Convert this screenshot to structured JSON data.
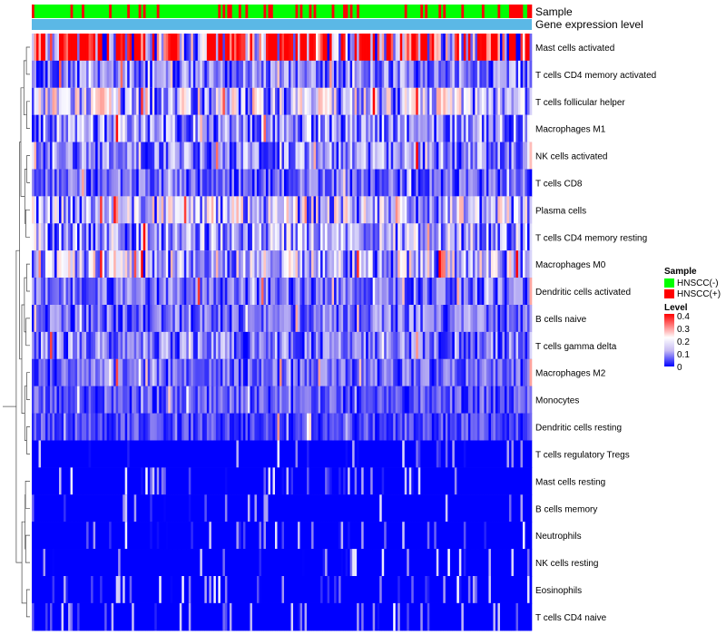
{
  "chart_data": {
    "type": "heatmap",
    "annotation_tracks": [
      "Sample",
      "Gene expression level"
    ],
    "rows": [
      "Mast cells activated",
      "T cells CD4 memory activated",
      "T cells follicular helper",
      "Macrophages M1",
      "NK cells activated",
      "T cells CD8",
      "Plasma cells",
      "T cells CD4 memory resting",
      "Macrophages M0",
      "Dendritic cells activated",
      "B cells naive",
      "T cells gamma delta",
      "Macrophages M2",
      "Monocytes",
      "Dendritic cells resting",
      "T cells regulatory  Tregs",
      "Mast cells resting",
      "B cells memory",
      "Neutrophils",
      "NK cells resting",
      "Eosinophils",
      "T cells CD4 naive"
    ],
    "row_mean_levels": [
      0.32,
      0.09,
      0.15,
      0.11,
      0.1,
      0.07,
      0.14,
      0.12,
      0.14,
      0.08,
      0.08,
      0.09,
      0.07,
      0.06,
      0.05,
      0.02,
      0.02,
      0.02,
      0.01,
      0.01,
      0.01,
      0.01
    ],
    "n_samples": 220,
    "color_scale": {
      "min": 0,
      "max": 0.4,
      "stops": [
        [
          0,
          "#0000ff"
        ],
        [
          0.1,
          "#9b8ff0"
        ],
        [
          0.2,
          "#ffffff"
        ],
        [
          0.3,
          "#ff8a80"
        ],
        [
          0.4,
          "#ff0000"
        ]
      ]
    },
    "sample_legend_title": "Sample",
    "sample_groups": [
      {
        "label": "HNSCC(-)",
        "color": "#00ff00",
        "fraction": 0.8
      },
      {
        "label": "HNSCC(+)",
        "color": "#ff0000",
        "fraction": 0.2
      }
    ],
    "expression_track_color": "#5bb8e6",
    "level_legend_title": "Level",
    "level_ticks": [
      "0.4",
      "0.3",
      "0.2",
      "0.1",
      "0"
    ]
  }
}
